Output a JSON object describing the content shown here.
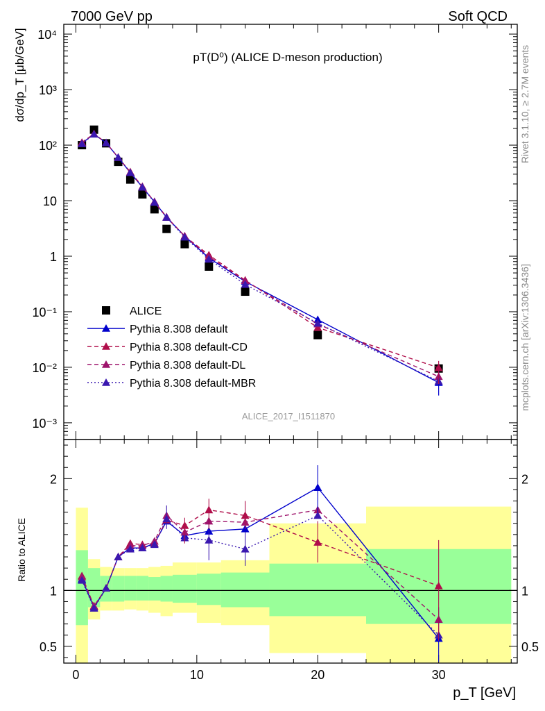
{
  "header": {
    "left": "7000 GeV pp",
    "right": "Soft QCD"
  },
  "plot_title": "pT(D⁰) (ALICE D-meson production)",
  "side_labels": {
    "rivet": "Rivet 3.1.10, ≥ 2.7M events",
    "mcplots": "mcplots.cern.ch [arXiv:1306.3436]"
  },
  "watermark": "ALICE_2017_I1511870",
  "chart_data": [
    {
      "type": "scatter",
      "panel": "main",
      "ylabel": "dσ/dp_T [μb/GeV]",
      "xlabel": "",
      "yscale": "log",
      "ylim": [
        0.0005,
        15000
      ],
      "xlim": [
        -1,
        36.5
      ],
      "ytick_labels": [
        "10⁻³",
        "10⁻²",
        "10⁻¹",
        "1",
        "10",
        "10²",
        "10³",
        "10⁴"
      ],
      "x": [
        0.5,
        1.5,
        2.5,
        3.5,
        4.5,
        5.5,
        6.5,
        7.5,
        9,
        11,
        14,
        20,
        30
      ],
      "series": [
        {
          "name": "ALICE",
          "marker": "square",
          "color": "#000000",
          "values": [
            100,
            190,
            108,
            50,
            24,
            13,
            7,
            3.1,
            1.65,
            0.65,
            0.23,
            0.038,
            0.0095
          ]
        },
        {
          "name": "Pythia 8.308 default",
          "marker": "triangle",
          "color": "#0000cc",
          "style": "solid",
          "values": [
            108,
            158,
            110,
            60,
            32,
            17.5,
            9.5,
            5.0,
            2.3,
            0.93,
            0.35,
            0.072,
            0.0053
          ]
        },
        {
          "name": "Pythia 8.308 default-CD",
          "marker": "triangle",
          "color": "#b00e4a",
          "style": "dashed",
          "values": [
            112,
            160,
            110,
            60,
            33,
            18,
            9.5,
            5.0,
            2.3,
            1.05,
            0.37,
            0.052,
            0.0098
          ]
        },
        {
          "name": "Pythia 8.308 default-DL",
          "marker": "triangle",
          "color": "#9e146c",
          "style": "dashed",
          "values": [
            110,
            160,
            110,
            60,
            32,
            17.5,
            9.6,
            5.1,
            2.3,
            0.98,
            0.36,
            0.06,
            0.0068
          ]
        },
        {
          "name": "Pythia 8.308 default-MBR",
          "marker": "triangle",
          "color": "#3a18b0",
          "style": "dotted",
          "values": [
            106,
            157,
            110,
            60,
            32,
            17.5,
            9.3,
            5.0,
            2.2,
            0.88,
            0.31,
            0.062,
            0.0056
          ]
        }
      ]
    },
    {
      "type": "line",
      "panel": "ratio",
      "ylabel": "Ratio to ALICE",
      "xlabel": "p_T [GeV]",
      "ylim": [
        0.35,
        2.35
      ],
      "xlim": [
        -1,
        36.5
      ],
      "xtick_labels": [
        "0",
        "10",
        "20",
        "30"
      ],
      "ytick_labels": [
        "0.5",
        "1",
        "2"
      ],
      "x": [
        0.5,
        1.5,
        2.5,
        3.5,
        4.5,
        5.5,
        6.5,
        7.5,
        9,
        11,
        14,
        20,
        30
      ],
      "bin_edges": [
        0,
        1,
        2,
        3,
        4,
        5,
        6,
        7,
        8,
        10,
        12,
        16,
        24,
        36
      ],
      "band_green": [
        [
          0.69,
          1.36
        ],
        [
          0.85,
          1.2
        ],
        [
          0.9,
          1.13
        ],
        [
          0.9,
          1.13
        ],
        [
          0.91,
          1.13
        ],
        [
          0.91,
          1.13
        ],
        [
          0.91,
          1.12
        ],
        [
          0.9,
          1.13
        ],
        [
          0.89,
          1.14
        ],
        [
          0.87,
          1.15
        ],
        [
          0.85,
          1.16
        ],
        [
          0.77,
          1.24
        ],
        [
          0.7,
          1.37
        ]
      ],
      "band_yellow": [
        [
          0.3,
          1.74
        ],
        [
          0.74,
          1.28
        ],
        [
          0.82,
          1.21
        ],
        [
          0.82,
          1.2
        ],
        [
          0.83,
          1.2
        ],
        [
          0.82,
          1.2
        ],
        [
          0.8,
          1.21
        ],
        [
          0.77,
          1.22
        ],
        [
          0.8,
          1.25
        ],
        [
          0.71,
          1.25
        ],
        [
          0.69,
          1.27
        ],
        [
          0.44,
          1.6
        ],
        [
          0.3,
          1.75
        ]
      ],
      "series": [
        {
          "name": "Pythia 8.308 default",
          "color": "#0000cc",
          "style": "solid",
          "values": [
            1.1,
            0.85,
            1.02,
            1.3,
            1.38,
            1.38,
            1.42,
            1.62,
            1.49,
            1.53,
            1.55,
            1.92,
            0.57
          ]
        },
        {
          "name": "Pythia 8.308 default-CD",
          "color": "#b00e4a",
          "style": "dashed",
          "values": [
            1.13,
            0.86,
            1.02,
            1.3,
            1.42,
            1.41,
            1.42,
            1.63,
            1.58,
            1.72,
            1.67,
            1.43,
            1.04
          ]
        },
        {
          "name": "Pythia 8.308 default-DL",
          "color": "#9e146c",
          "style": "dashed",
          "values": [
            1.12,
            0.86,
            1.02,
            1.3,
            1.4,
            1.4,
            1.44,
            1.67,
            1.52,
            1.62,
            1.61,
            1.72,
            0.74
          ]
        },
        {
          "name": "Pythia 8.308 default-MBR",
          "color": "#3a18b0",
          "style": "dotted",
          "values": [
            1.09,
            0.84,
            1.02,
            1.3,
            1.37,
            1.38,
            1.41,
            1.64,
            1.47,
            1.45,
            1.37,
            1.67,
            0.6
          ]
        }
      ]
    }
  ]
}
